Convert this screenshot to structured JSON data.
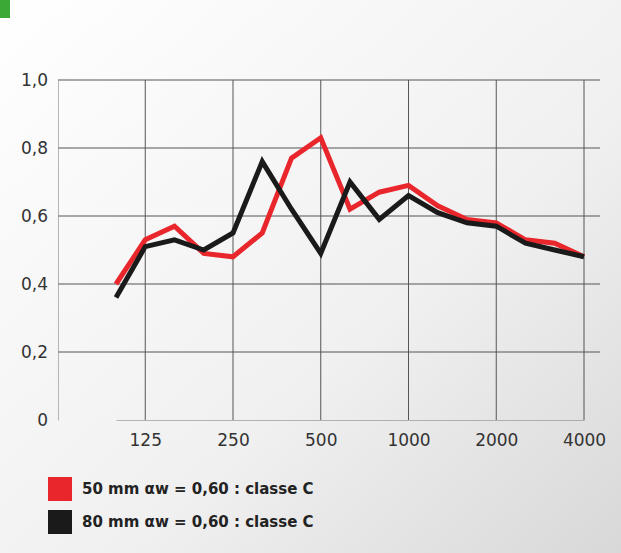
{
  "chart_data": {
    "type": "line",
    "categories": [
      null,
      "125",
      null,
      null,
      "250",
      null,
      null,
      "500",
      null,
      null,
      "1000",
      null,
      null,
      "2000",
      null,
      null,
      "4000"
    ],
    "series": [
      {
        "name": "50 mm αw = 0,60 : classe C",
        "color": "#e8262b",
        "values": [
          0.4,
          0.53,
          0.57,
          0.49,
          0.48,
          0.55,
          0.77,
          0.83,
          0.62,
          0.67,
          0.69,
          0.63,
          0.59,
          0.58,
          0.53,
          0.52,
          0.48
        ]
      },
      {
        "name": "80 mm αw = 0,60 : classe C",
        "color": "#1a1a1a",
        "values": [
          0.36,
          0.51,
          0.53,
          0.5,
          0.55,
          0.76,
          0.62,
          0.49,
          0.7,
          0.59,
          0.66,
          0.61,
          0.58,
          0.57,
          0.52,
          0.5,
          0.48
        ]
      }
    ],
    "ylim": [
      0,
      1.0
    ],
    "yticks": [
      0,
      {
        "value": 0.2,
        "label": "0,2"
      },
      {
        "value": 0.4,
        "label": "0,4"
      },
      {
        "value": 0.6,
        "label": "0,6"
      },
      {
        "value": 0.8,
        "label": "0,8"
      },
      {
        "value": 1.0,
        "label": "1,0"
      }
    ],
    "grid": true,
    "legend": "bottom-left"
  }
}
